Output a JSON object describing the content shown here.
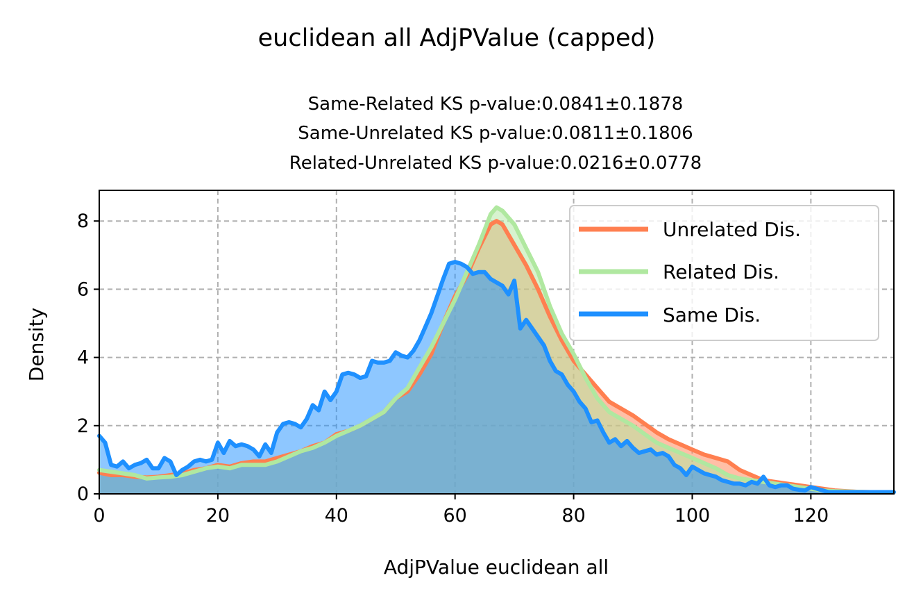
{
  "chart_data": {
    "type": "area",
    "title": "euclidean all AdjPValue (capped)",
    "subtitle_lines": [
      "Same-Related KS p-value:0.0841±0.1878",
      "Same-Unrelated KS p-value:0.0811±0.1806",
      "Related-Unrelated KS p-value:0.0216±0.0778"
    ],
    "xlabel": "AdjPValue euclidean all",
    "ylabel": "Density",
    "xlim": [
      0,
      134
    ],
    "ylim": [
      0,
      8.9
    ],
    "xticks": [
      0,
      20,
      40,
      60,
      80,
      100,
      120
    ],
    "yticks": [
      0,
      2,
      4,
      6,
      8
    ],
    "grid": true,
    "legend_position": "top-right",
    "series": [
      {
        "name": "Unrelated Dis.",
        "color": "#FF7F50",
        "x": [
          0,
          2,
          4,
          6,
          8,
          10,
          12,
          14,
          16,
          18,
          20,
          22,
          24,
          26,
          28,
          30,
          32,
          34,
          36,
          38,
          40,
          42,
          44,
          46,
          48,
          50,
          52,
          54,
          56,
          58,
          60,
          62,
          64,
          66,
          67,
          68,
          70,
          72,
          74,
          76,
          78,
          80,
          82,
          84,
          86,
          88,
          90,
          92,
          94,
          96,
          98,
          100,
          102,
          104,
          106,
          108,
          110,
          112,
          114,
          116,
          118,
          120,
          122,
          124,
          126,
          128,
          130,
          132,
          134
        ],
        "values": [
          0.62,
          0.55,
          0.55,
          0.5,
          0.48,
          0.5,
          0.55,
          0.6,
          0.7,
          0.75,
          0.85,
          0.8,
          0.9,
          0.95,
          0.95,
          1.05,
          1.15,
          1.25,
          1.4,
          1.5,
          1.75,
          1.85,
          2.0,
          2.2,
          2.4,
          2.8,
          3.0,
          3.5,
          4.1,
          5.0,
          5.8,
          6.4,
          7.2,
          7.9,
          8.0,
          7.9,
          7.3,
          6.7,
          6.0,
          5.2,
          4.5,
          3.9,
          3.5,
          3.1,
          2.7,
          2.5,
          2.3,
          2.05,
          1.8,
          1.6,
          1.45,
          1.3,
          1.15,
          1.05,
          0.95,
          0.7,
          0.55,
          0.4,
          0.35,
          0.3,
          0.25,
          0.2,
          0.15,
          0.1,
          0.08,
          0.06,
          0.05,
          0.05,
          0.05
        ]
      },
      {
        "name": "Related Dis.",
        "color": "#B0E8A0",
        "x": [
          0,
          2,
          4,
          6,
          8,
          10,
          12,
          14,
          16,
          18,
          20,
          22,
          24,
          26,
          28,
          30,
          32,
          34,
          36,
          38,
          40,
          42,
          44,
          46,
          48,
          50,
          52,
          54,
          56,
          58,
          60,
          62,
          64,
          66,
          67,
          68,
          70,
          72,
          74,
          76,
          78,
          80,
          82,
          84,
          86,
          88,
          90,
          92,
          94,
          96,
          98,
          100,
          102,
          104,
          106,
          108,
          110,
          112,
          114,
          116,
          118,
          120,
          122,
          124,
          126,
          128,
          130,
          132,
          134
        ],
        "values": [
          0.7,
          0.65,
          0.6,
          0.55,
          0.45,
          0.48,
          0.5,
          0.55,
          0.65,
          0.75,
          0.8,
          0.75,
          0.85,
          0.85,
          0.85,
          0.95,
          1.1,
          1.25,
          1.35,
          1.5,
          1.7,
          1.85,
          2.0,
          2.2,
          2.4,
          2.8,
          3.1,
          3.7,
          4.3,
          5.0,
          5.7,
          6.5,
          7.3,
          8.2,
          8.4,
          8.3,
          7.9,
          7.2,
          6.5,
          5.5,
          4.7,
          4.1,
          3.4,
          2.8,
          2.4,
          2.2,
          2.0,
          1.75,
          1.5,
          1.35,
          1.2,
          1.05,
          0.9,
          0.75,
          0.55,
          0.45,
          0.4,
          0.35,
          0.3,
          0.25,
          0.2,
          0.15,
          0.1,
          0.08,
          0.07,
          0.06,
          0.05,
          0.05,
          0.05
        ]
      },
      {
        "name": "Same Dis.",
        "color": "#1E90FF",
        "x": [
          0,
          1,
          2,
          3,
          4,
          5,
          6,
          7,
          8,
          9,
          10,
          11,
          12,
          13,
          14,
          15,
          16,
          17,
          18,
          19,
          20,
          21,
          22,
          23,
          24,
          25,
          26,
          27,
          28,
          29,
          30,
          31,
          32,
          33,
          34,
          35,
          36,
          37,
          38,
          39,
          40,
          41,
          42,
          43,
          44,
          45,
          46,
          47,
          48,
          49,
          50,
          51,
          52,
          53,
          54,
          55,
          56,
          57,
          58,
          59,
          60,
          61,
          62,
          63,
          64,
          65,
          66,
          67,
          68,
          69,
          70,
          71,
          72,
          73,
          74,
          75,
          76,
          77,
          78,
          79,
          80,
          81,
          82,
          83,
          84,
          85,
          86,
          87,
          88,
          89,
          90,
          91,
          92,
          93,
          94,
          95,
          96,
          97,
          98,
          99,
          100,
          101,
          102,
          103,
          104,
          105,
          106,
          107,
          108,
          109,
          110,
          111,
          112,
          113,
          114,
          115,
          116,
          117,
          118,
          119,
          120,
          121,
          122,
          123,
          124,
          125,
          126,
          127,
          128,
          129,
          130,
          131,
          132,
          133,
          134
        ],
        "values": [
          1.7,
          1.5,
          0.85,
          0.8,
          0.95,
          0.75,
          0.85,
          0.9,
          1.0,
          0.75,
          0.75,
          1.05,
          0.95,
          0.55,
          0.7,
          0.8,
          0.95,
          1.0,
          0.95,
          1.0,
          1.5,
          1.2,
          1.55,
          1.4,
          1.45,
          1.4,
          1.3,
          1.1,
          1.45,
          1.2,
          1.8,
          2.05,
          2.1,
          2.05,
          1.95,
          2.2,
          2.6,
          2.45,
          3.0,
          2.75,
          3.0,
          3.5,
          3.55,
          3.5,
          3.4,
          3.45,
          3.9,
          3.85,
          3.85,
          3.9,
          4.15,
          4.05,
          4.0,
          4.2,
          4.5,
          4.9,
          5.3,
          5.8,
          6.3,
          6.75,
          6.8,
          6.75,
          6.65,
          6.45,
          6.5,
          6.5,
          6.3,
          6.2,
          6.1,
          5.85,
          6.25,
          4.85,
          5.1,
          4.85,
          4.6,
          4.35,
          3.9,
          3.6,
          3.5,
          3.2,
          3.0,
          2.7,
          2.5,
          2.1,
          2.15,
          1.8,
          1.5,
          1.6,
          1.4,
          1.55,
          1.35,
          1.2,
          1.25,
          1.3,
          1.15,
          1.2,
          1.1,
          0.85,
          0.75,
          0.55,
          0.8,
          0.7,
          0.6,
          0.55,
          0.5,
          0.4,
          0.35,
          0.3,
          0.3,
          0.25,
          0.35,
          0.3,
          0.5,
          0.25,
          0.2,
          0.25,
          0.25,
          0.15,
          0.12,
          0.1,
          0.2,
          0.15,
          0.1,
          0.05,
          0.05,
          0.05,
          0.05,
          0.05,
          0.05,
          0.05,
          0.05,
          0.05,
          0.05,
          0.05,
          0.05
        ]
      }
    ]
  }
}
